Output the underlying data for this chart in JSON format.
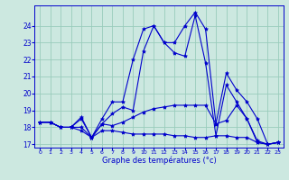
{
  "xlabel": "Graphe des températures (°c)",
  "bg_color": "#cce8e0",
  "grid_color": "#99ccbb",
  "line_color": "#0000cc",
  "xlim": [
    -0.5,
    23.5
  ],
  "ylim": [
    16.8,
    25.2
  ],
  "yticks": [
    17,
    18,
    19,
    20,
    21,
    22,
    23,
    24
  ],
  "xticks": [
    0,
    1,
    2,
    3,
    4,
    5,
    6,
    7,
    8,
    9,
    10,
    11,
    12,
    13,
    14,
    15,
    16,
    17,
    18,
    19,
    20,
    21,
    22,
    23
  ],
  "series": [
    [
      18.3,
      18.3,
      18.0,
      18.0,
      18.5,
      17.4,
      18.5,
      19.5,
      19.5,
      22.0,
      23.8,
      24.0,
      23.0,
      22.4,
      22.2,
      24.6,
      21.8,
      17.5,
      20.5,
      19.5,
      18.5,
      17.2,
      17.0,
      17.1
    ],
    [
      18.3,
      18.3,
      18.0,
      18.0,
      18.0,
      17.4,
      18.2,
      18.1,
      18.3,
      18.6,
      18.9,
      19.1,
      19.2,
      19.3,
      19.3,
      19.3,
      19.3,
      18.2,
      18.4,
      19.3,
      18.5,
      17.1,
      17.0,
      17.1
    ],
    [
      18.3,
      18.3,
      18.0,
      18.0,
      17.8,
      17.4,
      17.8,
      17.8,
      17.7,
      17.6,
      17.6,
      17.6,
      17.6,
      17.5,
      17.5,
      17.4,
      17.4,
      17.5,
      17.5,
      17.4,
      17.4,
      17.1,
      17.0,
      17.1
    ],
    [
      18.3,
      18.3,
      18.0,
      18.0,
      18.6,
      17.4,
      18.2,
      18.8,
      19.2,
      19.0,
      22.5,
      24.0,
      23.0,
      23.0,
      24.0,
      24.8,
      23.8,
      18.2,
      21.2,
      20.2,
      19.5,
      18.5,
      17.0,
      17.1
    ]
  ]
}
